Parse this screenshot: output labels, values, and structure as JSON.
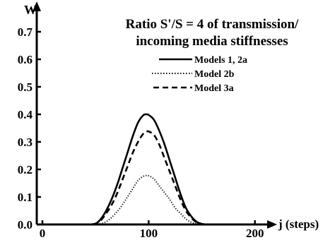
{
  "chart_data": {
    "type": "line",
    "title_lines": [
      "Ratio  S'/S = 4 of transmission/",
      "incoming media stiffnesses"
    ],
    "xlabel": "j (steps)",
    "ylabel": "W",
    "xlim": [
      0,
      270
    ],
    "ylim": [
      0,
      0.75
    ],
    "x_ticks": [
      0,
      100,
      200
    ],
    "x_tick_labels": [
      "0",
      "100",
      "200"
    ],
    "y_ticks": [
      0.0,
      0.1,
      0.2,
      0.3,
      0.4,
      0.5,
      0.6,
      0.7
    ],
    "y_tick_labels": [
      "0.0",
      "0.1",
      "0.2",
      "0.3",
      "0.4",
      "0.5",
      "0.6",
      "0.7"
    ],
    "grid": false,
    "legend_position": "top-right",
    "series": [
      {
        "name": "Models 1, 2a",
        "style": "solid",
        "x": [
          30,
          42,
          50,
          55,
          60,
          65,
          70,
          75,
          80,
          85,
          90,
          95,
          98,
          100,
          105,
          110,
          115,
          120,
          125,
          130,
          135,
          140,
          145,
          150,
          155,
          160,
          170
        ],
        "y": [
          0,
          0,
          0.003,
          0.02,
          0.05,
          0.09,
          0.14,
          0.2,
          0.26,
          0.32,
          0.37,
          0.397,
          0.4,
          0.398,
          0.38,
          0.34,
          0.29,
          0.23,
          0.17,
          0.11,
          0.06,
          0.03,
          0.01,
          0.002,
          0,
          0,
          0
        ]
      },
      {
        "name": "Model 2b",
        "style": "dotted",
        "x": [
          30,
          48,
          55,
          60,
          65,
          70,
          75,
          80,
          85,
          90,
          95,
          98,
          100,
          105,
          110,
          115,
          120,
          125,
          130,
          135,
          140,
          145,
          150,
          160,
          170
        ],
        "y": [
          0,
          0,
          0.003,
          0.01,
          0.025,
          0.045,
          0.07,
          0.1,
          0.13,
          0.16,
          0.175,
          0.178,
          0.177,
          0.165,
          0.14,
          0.115,
          0.09,
          0.06,
          0.04,
          0.02,
          0.008,
          0.002,
          0,
          0,
          0
        ]
      },
      {
        "name": "Model 3a",
        "style": "dashed",
        "x": [
          30,
          43,
          50,
          55,
          60,
          65,
          70,
          75,
          80,
          85,
          90,
          95,
          98,
          100,
          105,
          110,
          115,
          120,
          125,
          130,
          135,
          140,
          145,
          150,
          155,
          160,
          170
        ],
        "y": [
          0,
          0,
          0.003,
          0.015,
          0.04,
          0.07,
          0.11,
          0.16,
          0.21,
          0.26,
          0.3,
          0.33,
          0.337,
          0.338,
          0.325,
          0.29,
          0.24,
          0.19,
          0.14,
          0.09,
          0.05,
          0.025,
          0.008,
          0.002,
          0,
          0,
          0
        ]
      }
    ]
  }
}
